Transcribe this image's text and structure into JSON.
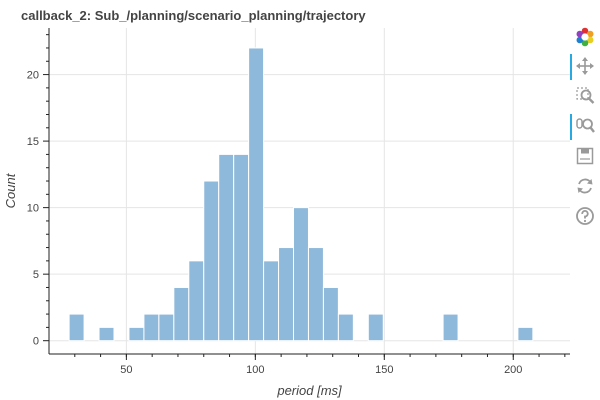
{
  "chart_data": {
    "type": "bar",
    "title": "callback_2: Sub_/planning/scenario_planning/trajectory",
    "xlabel": "period [ms]",
    "ylabel": "Count",
    "xlim": [
      20,
      222
    ],
    "ylim": [
      -1,
      23.5
    ],
    "x_ticks": [
      50,
      100,
      150,
      200
    ],
    "y_ticks": [
      0,
      5,
      10,
      15,
      20
    ],
    "bin_width": 5.8,
    "bins": [
      {
        "start": 27.8,
        "count": 2
      },
      {
        "start": 33.6,
        "count": 0
      },
      {
        "start": 39.4,
        "count": 1
      },
      {
        "start": 45.2,
        "count": 0
      },
      {
        "start": 51.0,
        "count": 1
      },
      {
        "start": 56.8,
        "count": 2
      },
      {
        "start": 62.6,
        "count": 2
      },
      {
        "start": 68.4,
        "count": 4
      },
      {
        "start": 74.2,
        "count": 6
      },
      {
        "start": 80.0,
        "count": 12
      },
      {
        "start": 85.8,
        "count": 14
      },
      {
        "start": 91.6,
        "count": 14
      },
      {
        "start": 97.4,
        "count": 22
      },
      {
        "start": 103.2,
        "count": 6
      },
      {
        "start": 109.0,
        "count": 7
      },
      {
        "start": 114.8,
        "count": 10
      },
      {
        "start": 120.6,
        "count": 7
      },
      {
        "start": 126.4,
        "count": 4
      },
      {
        "start": 132.2,
        "count": 2
      },
      {
        "start": 138.0,
        "count": 0
      },
      {
        "start": 143.8,
        "count": 2
      },
      {
        "start": 149.6,
        "count": 0
      },
      {
        "start": 155.4,
        "count": 0
      },
      {
        "start": 161.2,
        "count": 0
      },
      {
        "start": 167.0,
        "count": 0
      },
      {
        "start": 172.8,
        "count": 2
      },
      {
        "start": 178.6,
        "count": 0
      },
      {
        "start": 184.4,
        "count": 0
      },
      {
        "start": 190.2,
        "count": 0
      },
      {
        "start": 196.0,
        "count": 0
      },
      {
        "start": 201.8,
        "count": 1
      }
    ],
    "bar_color": "#8fb9da",
    "grid": true,
    "legend": "none"
  },
  "toolbar": {
    "tools": [
      {
        "name": "bokeh-logo-icon",
        "active": false
      },
      {
        "name": "pan-icon",
        "active": true
      },
      {
        "name": "box-zoom-icon",
        "active": false
      },
      {
        "name": "wheel-zoom-icon",
        "active": true
      },
      {
        "name": "save-icon",
        "active": false
      },
      {
        "name": "reset-icon",
        "active": false
      },
      {
        "name": "help-icon",
        "active": false
      }
    ]
  }
}
